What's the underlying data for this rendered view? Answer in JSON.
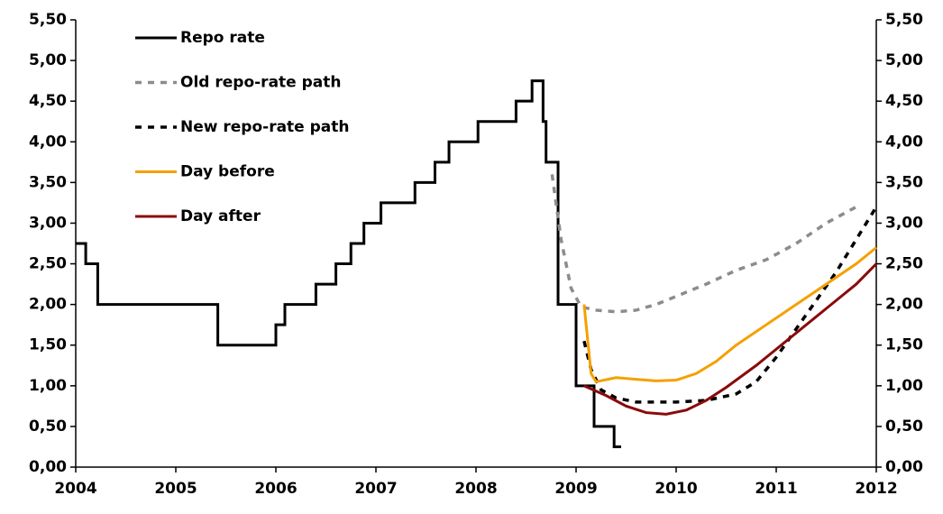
{
  "chart_data": {
    "type": "line",
    "legend_position": "upper left",
    "xlim": [
      2004,
      2012
    ],
    "xticks": [
      2004,
      2005,
      2006,
      2007,
      2008,
      2009,
      2010,
      2011,
      2012
    ],
    "ylim": [
      0,
      5.5
    ],
    "yticks": [
      {
        "value": 0,
        "label": "0,00"
      },
      {
        "value": 0.5,
        "label": "0,50"
      },
      {
        "value": 1,
        "label": "1,00"
      },
      {
        "value": 1.5,
        "label": "1,50"
      },
      {
        "value": 2,
        "label": "2,00"
      },
      {
        "value": 2.5,
        "label": "2,50"
      },
      {
        "value": 3,
        "label": "3,00"
      },
      {
        "value": 3.5,
        "label": "3,50"
      },
      {
        "value": 4,
        "label": "4,00"
      },
      {
        "value": 4.5,
        "label": "4,50"
      },
      {
        "value": 5,
        "label": "5,00"
      },
      {
        "value": 5.5,
        "label": "5,50"
      }
    ],
    "y2lim": [
      0,
      5.5
    ],
    "y2ticks": [
      {
        "value": 0,
        "label": "0,00"
      },
      {
        "value": 0.5,
        "label": "0,50"
      },
      {
        "value": 1,
        "label": "1,00"
      },
      {
        "value": 1.5,
        "label": "1,50"
      },
      {
        "value": 2,
        "label": "2,00"
      },
      {
        "value": 2.5,
        "label": "2,50"
      },
      {
        "value": 3,
        "label": "3,00"
      },
      {
        "value": 3.5,
        "label": "3,50"
      },
      {
        "value": 4,
        "label": "4,00"
      },
      {
        "value": 4.5,
        "label": "4,50"
      },
      {
        "value": 5,
        "label": "5,00"
      },
      {
        "value": 5.5,
        "label": "5,50"
      }
    ],
    "grid": false,
    "series": [
      {
        "name": "Repo rate",
        "color": "#000000",
        "dashed": false,
        "x": [
          2004.0,
          2004.1,
          2004.1,
          2004.22,
          2004.22,
          2005.42,
          2005.42,
          2006.0,
          2006.0,
          2006.09,
          2006.09,
          2006.4,
          2006.4,
          2006.6,
          2006.6,
          2006.75,
          2006.75,
          2006.88,
          2006.88,
          2007.05,
          2007.05,
          2007.39,
          2007.39,
          2007.59,
          2007.59,
          2007.73,
          2007.73,
          2008.02,
          2008.02,
          2008.4,
          2008.4,
          2008.56,
          2008.56,
          2008.67,
          2008.67,
          2008.7,
          2008.7,
          2008.82,
          2008.82,
          2009.0,
          2009.0,
          2009.18,
          2009.18,
          2009.38,
          2009.38,
          2009.45
        ],
        "values": [
          2.75,
          2.75,
          2.5,
          2.5,
          2.0,
          2.0,
          1.5,
          1.5,
          1.75,
          1.75,
          2.0,
          2.0,
          2.25,
          2.25,
          2.5,
          2.5,
          2.75,
          2.75,
          3.0,
          3.0,
          3.25,
          3.25,
          3.5,
          3.5,
          3.75,
          3.75,
          4.0,
          4.0,
          4.25,
          4.25,
          4.5,
          4.5,
          4.75,
          4.75,
          4.25,
          4.25,
          3.75,
          3.75,
          2.0,
          2.0,
          1.0,
          1.0,
          0.5,
          0.5,
          0.25,
          0.25
        ]
      },
      {
        "name": "Old repo-rate path",
        "color": "#8c8c8c",
        "dashed": true,
        "x": [
          2008.76,
          2008.85,
          2008.95,
          2009.05,
          2009.2,
          2009.4,
          2009.6,
          2009.8,
          2010.0,
          2010.3,
          2010.6,
          2010.9,
          2011.2,
          2011.5,
          2011.8
        ],
        "values": [
          3.6,
          2.8,
          2.2,
          1.97,
          1.93,
          1.91,
          1.93,
          2.0,
          2.1,
          2.25,
          2.42,
          2.55,
          2.75,
          3.0,
          3.2
        ]
      },
      {
        "name": "New repo-rate path",
        "color": "#000000",
        "dashed": true,
        "x": [
          2009.08,
          2009.15,
          2009.25,
          2009.4,
          2009.6,
          2010.0,
          2010.3,
          2010.6,
          2010.8,
          2011.0,
          2011.2,
          2011.4,
          2011.6,
          2011.8,
          2012.0
        ],
        "values": [
          1.55,
          1.2,
          0.95,
          0.85,
          0.8,
          0.8,
          0.82,
          0.9,
          1.05,
          1.35,
          1.7,
          2.05,
          2.4,
          2.8,
          3.2
        ]
      },
      {
        "name": "Day before",
        "color": "#f5a000",
        "dashed": false,
        "x": [
          2009.08,
          2009.15,
          2009.2,
          2009.4,
          2009.6,
          2009.8,
          2010.0,
          2010.2,
          2010.4,
          2010.6,
          2010.9,
          2011.2,
          2011.5,
          2011.8,
          2012.0
        ],
        "values": [
          2.0,
          1.15,
          1.05,
          1.1,
          1.08,
          1.06,
          1.07,
          1.15,
          1.3,
          1.5,
          1.75,
          2.0,
          2.25,
          2.5,
          2.7
        ]
      },
      {
        "name": "Day after",
        "color": "#8b0a0a",
        "dashed": false,
        "x": [
          2009.08,
          2009.3,
          2009.5,
          2009.7,
          2009.9,
          2010.1,
          2010.3,
          2010.5,
          2010.8,
          2011.0,
          2011.3,
          2011.6,
          2011.8,
          2012.0
        ],
        "values": [
          1.0,
          0.88,
          0.75,
          0.67,
          0.65,
          0.7,
          0.82,
          0.98,
          1.25,
          1.45,
          1.75,
          2.05,
          2.25,
          2.5
        ]
      }
    ]
  }
}
